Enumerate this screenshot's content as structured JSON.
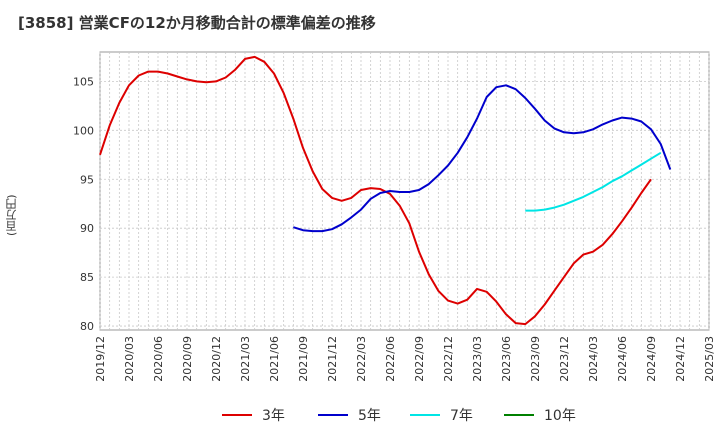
{
  "title": "[3858]  営業CFの12か月移動合計の標準偏差の推移",
  "colors": {
    "series_3": "#dd0000",
    "series_5": "#0000cc",
    "series_7": "#00e5e5",
    "series_10": "#008000"
  },
  "chart_data": {
    "type": "line",
    "title": "[3858]  営業CFの12か月移動合計の標準偏差の推移",
    "xlabel": "",
    "ylabel": "(百万円)",
    "ylim": [
      79.6,
      108.0
    ],
    "yticks": [
      80,
      85,
      90,
      95,
      100,
      105
    ],
    "xticks": [
      "2019/12",
      "2020/03",
      "2020/06",
      "2020/09",
      "2020/12",
      "2021/03",
      "2021/06",
      "2021/09",
      "2021/12",
      "2022/03",
      "2022/06",
      "2022/09",
      "2022/12",
      "2023/03",
      "2023/06",
      "2023/09",
      "2023/12",
      "2024/03",
      "2024/06",
      "2024/09",
      "2024/12",
      "2025/03"
    ],
    "grid": true,
    "legend_position": "bottom",
    "series": [
      {
        "name": "3年",
        "start": "2019/12",
        "values": [
          97.5,
          100.5,
          102.8,
          104.6,
          105.6,
          106.0,
          106.0,
          105.8,
          105.5,
          105.2,
          105.0,
          104.9,
          105.0,
          105.4,
          106.2,
          107.3,
          107.5,
          107.0,
          105.8,
          103.8,
          101.2,
          98.2,
          95.8,
          94.0,
          93.1,
          92.8,
          93.1,
          93.9,
          94.1,
          94.0,
          93.5,
          92.3,
          90.5,
          87.6,
          85.3,
          83.6,
          82.6,
          82.3,
          82.7,
          83.8,
          83.5,
          82.5,
          81.2,
          80.3,
          80.2,
          81.0,
          82.2,
          83.6,
          85.0,
          86.4,
          87.3,
          87.6,
          88.3,
          89.4,
          90.7,
          92.1,
          93.6,
          95.0
        ]
      },
      {
        "name": "5年",
        "start": "2021/08",
        "values": [
          90.1,
          89.8,
          89.7,
          89.7,
          89.9,
          90.4,
          91.1,
          91.9,
          93.0,
          93.6,
          93.8,
          93.7,
          93.7,
          93.9,
          94.5,
          95.4,
          96.4,
          97.7,
          99.3,
          101.2,
          103.4,
          104.4,
          104.6,
          104.2,
          103.3,
          102.2,
          101.0,
          100.2,
          99.8,
          99.7,
          99.8,
          100.1,
          100.6,
          101.0,
          101.3,
          101.2,
          100.9,
          100.1,
          98.6,
          96.0
        ]
      },
      {
        "name": "7年",
        "start": "2023/08",
        "values": [
          91.8,
          91.8,
          91.9,
          92.1,
          92.4,
          92.8,
          93.2,
          93.7,
          94.2,
          94.8,
          95.3,
          95.9,
          96.5,
          97.1,
          97.7
        ]
      },
      {
        "name": "10年",
        "start": "",
        "values": []
      }
    ]
  }
}
